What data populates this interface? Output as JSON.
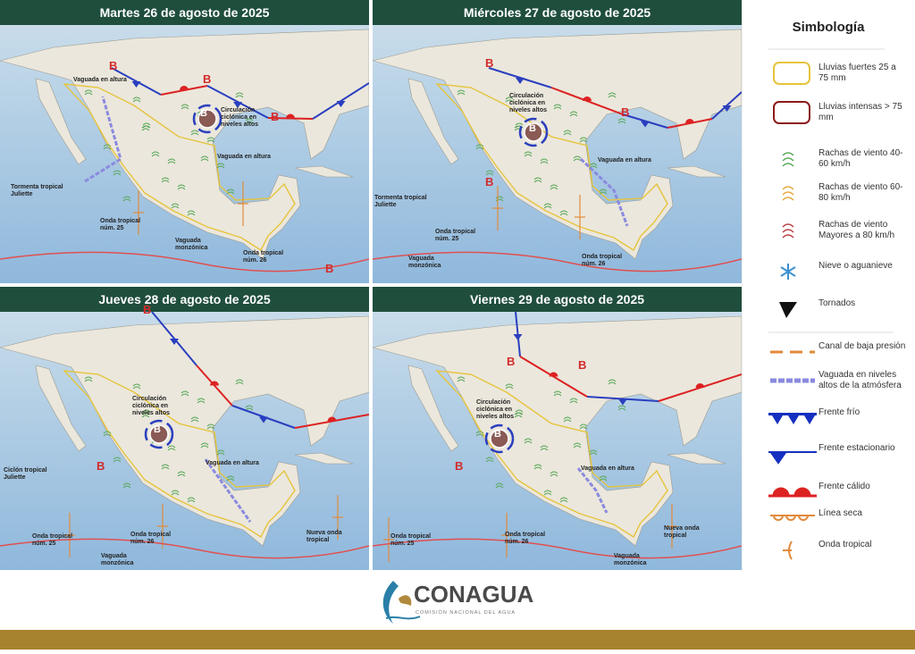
{
  "panels": [
    {
      "title": "Martes 26 de agosto de 2025",
      "labels": [
        "B",
        "B",
        "B",
        "B",
        "Vaguada en altura",
        "Circulación ciclónica en niveles altos",
        "Vaguada en altura",
        "Tormenta tropical Juliette",
        "Onda tropical núm. 25",
        "Onda tropical núm. 26",
        "Vaguada monzónica",
        "B"
      ]
    },
    {
      "title": "Miércoles 27 de agosto de 2025",
      "labels": [
        "B",
        "B",
        "B",
        "Circulación ciclónica en niveles altos",
        "B",
        "Tormenta tropical Juliette",
        "Vaguada en altura",
        "Onda tropical núm. 25",
        "Onda tropical núm. 26",
        "Vaguada monzónica"
      ]
    },
    {
      "title": "Jueves 28 de agosto de 2025",
      "labels": [
        "B",
        "Circulación ciclónica en niveles altos",
        "B",
        "B",
        "Ciclón tropical Juliette",
        "Vaguada en altura",
        "Onda tropical núm. 25",
        "Onda tropical núm. 26",
        "Nueva onda tropical",
        "Vaguada monzónica"
      ]
    },
    {
      "title": "Viernes 29 de agosto de 2025",
      "labels": [
        "B",
        "B",
        "Circulación ciclónica en niveles altos",
        "B",
        "B",
        "Vaguada en altura",
        "Onda tropical núm. 25",
        "Onda tropical núm. 26",
        "Nueva onda tropical",
        "Vaguada monzónica"
      ]
    }
  ],
  "legend": {
    "title": "Simbología",
    "items": [
      "Lluvias fuertes 25 a 75 mm",
      "Lluvias intensas > 75 mm",
      "Rachas de viento 40-60 km/h",
      "Rachas de viento 60-80 km/h",
      "Rachas de viento Mayores a 80 km/h",
      "Nieve o aguanieve",
      "Tornados",
      "Canal de baja presión",
      "Vaguada en niveles altos de la atmósfera",
      "Frente frío",
      "Frente estacionario",
      "Frente cálido",
      "Línea seca",
      "Onda tropical"
    ]
  },
  "footer": {
    "brand": "CONAGUA",
    "subtitle": "COMISIÓN NACIONAL DEL AGUA"
  }
}
